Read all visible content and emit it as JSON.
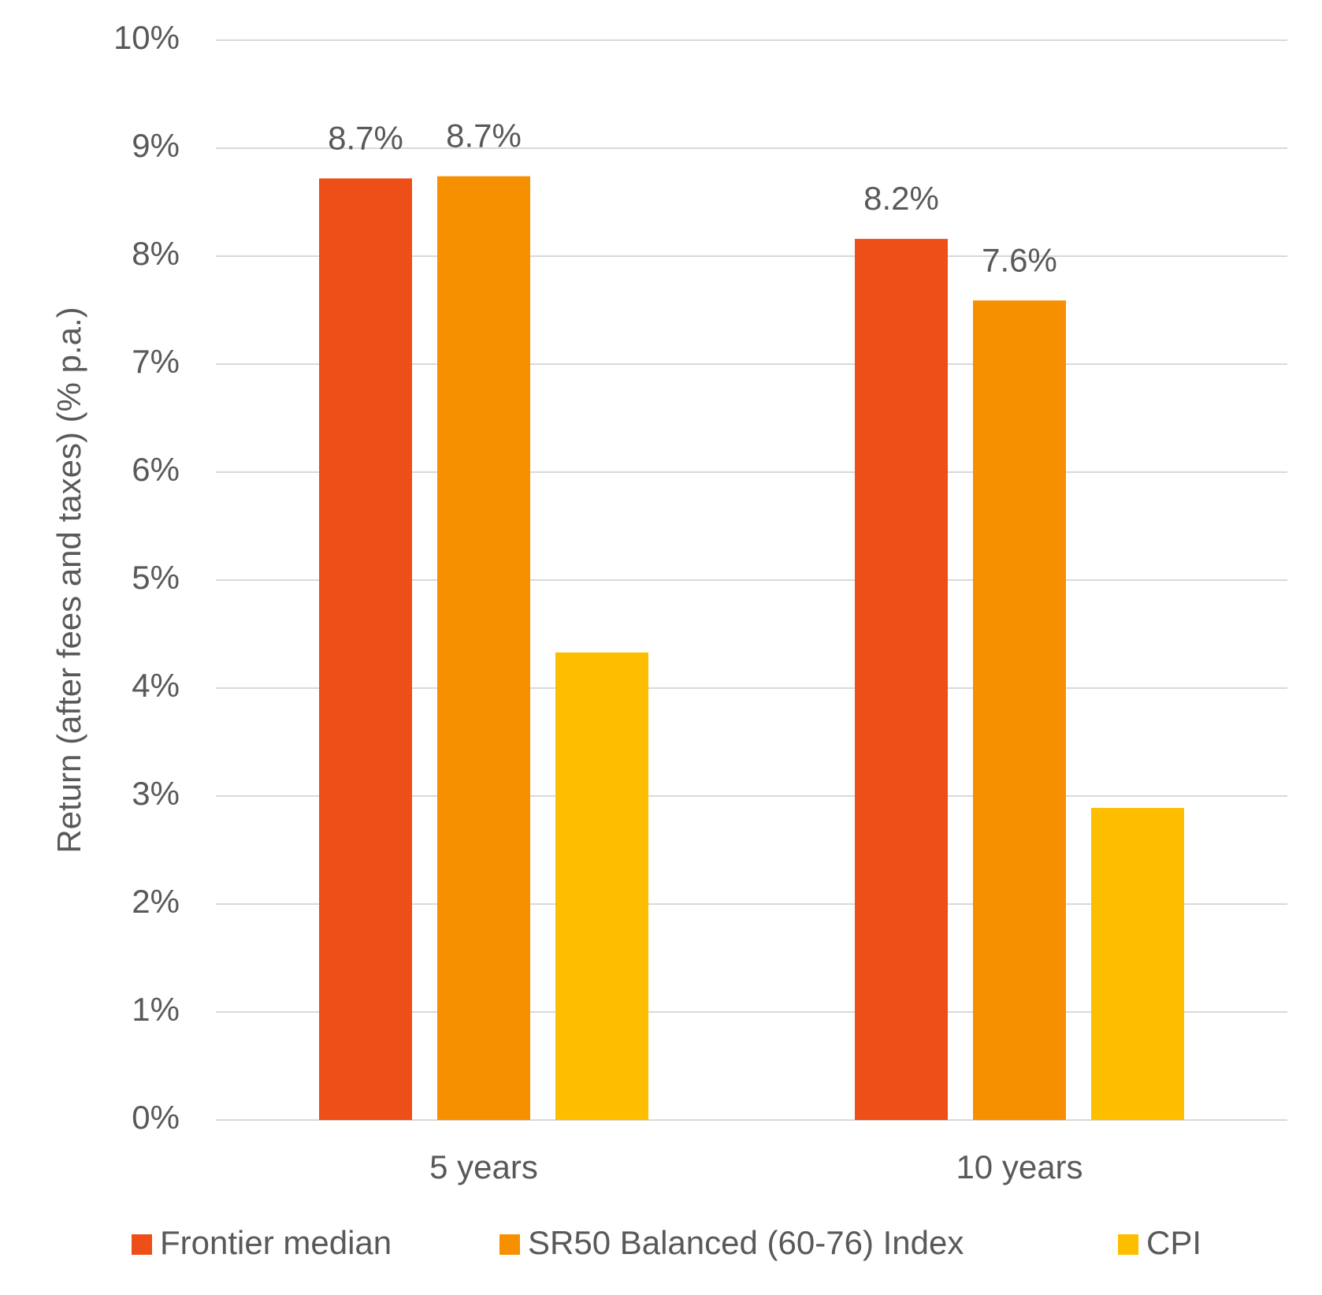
{
  "chart_data": {
    "type": "bar",
    "y_label": "Return (after fees and taxes) (% p.a.)",
    "categories": [
      "5 years",
      "10 years"
    ],
    "series": [
      {
        "name": "Frontier median",
        "color": "#EE4F19",
        "values": [
          8.72,
          8.16
        ],
        "value_labels": [
          "8.7%",
          "8.2%"
        ]
      },
      {
        "name": "SR50 Balanced (60-76) Index",
        "color": "#F79000",
        "values": [
          8.74,
          7.59
        ],
        "value_labels": [
          "8.7%",
          "7.6%"
        ]
      },
      {
        "name": "CPI",
        "color": "#FDBE00",
        "values": [
          4.33,
          2.89
        ],
        "value_labels": [
          null,
          null
        ]
      }
    ],
    "ylim": [
      0,
      10
    ],
    "yticks": [
      {
        "value": 0,
        "label": "0%"
      },
      {
        "value": 1,
        "label": "1%"
      },
      {
        "value": 2,
        "label": "2%"
      },
      {
        "value": 3,
        "label": "3%"
      },
      {
        "value": 4,
        "label": "4%"
      },
      {
        "value": 5,
        "label": "5%"
      },
      {
        "value": 6,
        "label": "6%"
      },
      {
        "value": 7,
        "label": "7%"
      },
      {
        "value": 8,
        "label": "8%"
      },
      {
        "value": 9,
        "label": "9%"
      },
      {
        "value": 10,
        "label": "10%"
      }
    ],
    "grid": true,
    "legend": "bottom"
  }
}
